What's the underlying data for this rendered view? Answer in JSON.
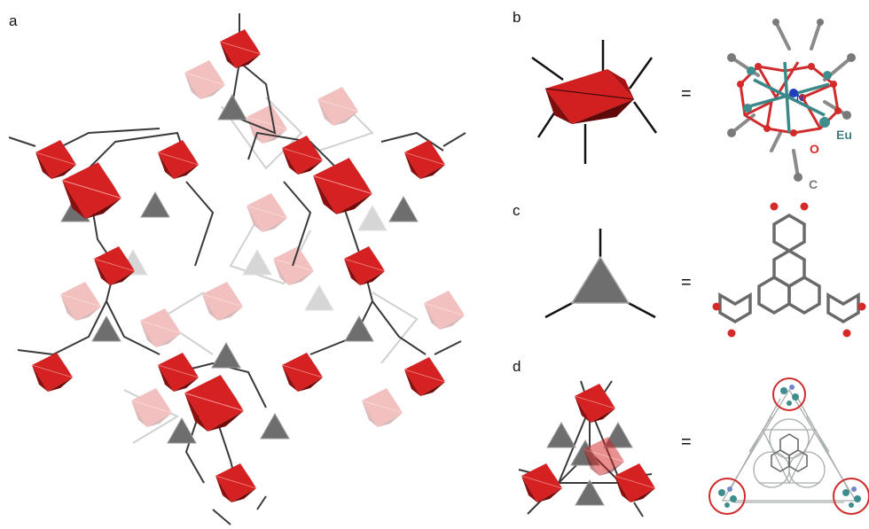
{
  "panels": {
    "a": {
      "label": "a"
    },
    "b": {
      "label": "b",
      "equals": "=",
      "atoms": {
        "n": "N",
        "o": "O",
        "eu": "Eu",
        "c": "C"
      }
    },
    "c": {
      "label": "c",
      "equals": "="
    },
    "d": {
      "label": "d",
      "equals": "="
    }
  },
  "colors": {
    "octahedron": "#d21f1f",
    "octahedron_dark": "#7e0d0d",
    "triangle": "#6e6e6e",
    "link": "#3a3a3a",
    "oxygen": "#d42a2a",
    "europium": "#3e8e8e",
    "nitrogen": "#1f3fbf",
    "carbon": "#7a7a7a"
  },
  "icons": [
    "eu-octahedron-icon",
    "triangle-linker-icon",
    "tetrahedral-cage-icon",
    "ball-and-stick-model-icon"
  ]
}
